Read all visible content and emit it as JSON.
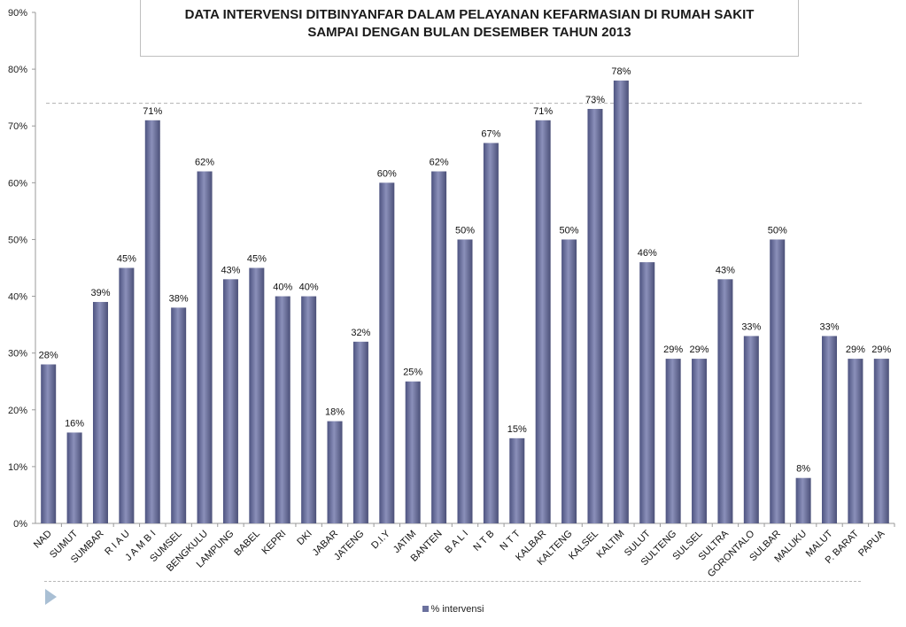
{
  "chart_data": {
    "type": "bar",
    "title": "DATA INTERVENSI DITBINYANFAR DALAM PELAYANAN KEFARMASIAN DI RUMAH SAKIT SAMPAI DENGAN BULAN DESEMBER TAHUN 2013",
    "title_lines": [
      "DATA INTERVENSI DITBINYANFAR DALAM PELAYANAN KEFARMASIAN DI RUMAH SAKIT",
      "SAMPAI DENGAN BULAN DESEMBER TAHUN 2013"
    ],
    "categories": [
      "NAD",
      "SUMUT",
      "SUMBAR",
      "R I A U",
      "J A M B I",
      "SUMSEL",
      "BENGKULU",
      "LAMPUNG",
      "BABEL",
      "KEPRI",
      "DKI",
      "JABAR",
      "JATENG",
      "D.I.Y",
      "JATIM",
      "BANTEN",
      "B A L I",
      "N T B",
      "N T T",
      "KALBAR",
      "KALTENG",
      "KALSEL",
      "KALTIM",
      "SULUT",
      "SULTENG",
      "SULSEL",
      "SULTRA",
      "GORONTALO",
      "SULBAR",
      "MALUKU",
      "MALUT",
      "P. BARAT",
      "PAPUA"
    ],
    "series": [
      {
        "name": "% intervensi",
        "values": [
          28,
          16,
          39,
          45,
          71,
          38,
          62,
          43,
          45,
          40,
          40,
          18,
          32,
          60,
          25,
          62,
          50,
          67,
          15,
          71,
          50,
          73,
          78,
          46,
          29,
          29,
          43,
          33,
          50,
          8,
          33,
          29,
          29
        ],
        "labels": [
          "28%",
          "16%",
          "39%",
          "45%",
          "71%",
          "38%",
          "62%",
          "43%",
          "45%",
          "40%",
          "40%",
          "18%",
          "32%",
          "60%",
          "25%",
          "62%",
          "50%",
          "67%",
          "15%",
          "71%",
          "50%",
          "73%",
          "78%",
          "46%",
          "29%",
          "29%",
          "43%",
          "33%",
          "50%",
          "8%",
          "33%",
          "29%",
          "29%"
        ]
      }
    ],
    "ylim": [
      0,
      90
    ],
    "yticks": [
      "0%",
      "10%",
      "20%",
      "30%",
      "40%",
      "50%",
      "60%",
      "70%",
      "80%",
      "90%"
    ],
    "reference_line": 74,
    "grid": false,
    "legend": "bottom",
    "bar_color": "#6b719e"
  }
}
